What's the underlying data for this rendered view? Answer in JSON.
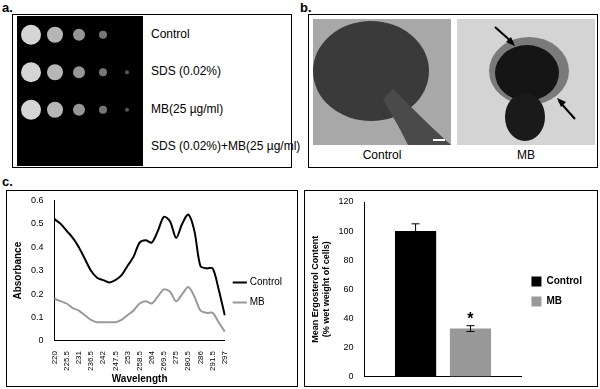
{
  "panel_a": {
    "label": "a.",
    "rows": [
      {
        "label": "Control",
        "spots": 4
      },
      {
        "label": "SDS (0.02%)",
        "spots": 5
      },
      {
        "label": "MB(25 µg/ml)",
        "spots": 5
      },
      {
        "label": "SDS (0.02%)+MB(25 µg/ml)",
        "spots": 0
      }
    ]
  },
  "panel_b": {
    "label": "b.",
    "images": [
      "Control",
      "MB"
    ]
  },
  "panel_c": {
    "label": "c."
  },
  "chart_data": [
    {
      "type": "line",
      "x_label": "Wavelength",
      "y_label": "Absorbance",
      "categories": [
        220,
        null,
        225.5,
        null,
        231,
        null,
        236.5,
        null,
        242,
        null,
        247.5,
        null,
        253,
        null,
        258.5,
        null,
        264,
        null,
        269.5,
        null,
        275,
        null,
        280.5,
        null,
        286,
        null,
        291.5,
        null,
        297
      ],
      "series": [
        {
          "name": "Control",
          "color": "#000000",
          "line_style": "solid",
          "marker": "none",
          "values": [
            0.52,
            0.5,
            0.47,
            0.44,
            0.4,
            0.35,
            0.3,
            0.27,
            0.26,
            0.25,
            0.26,
            0.28,
            0.32,
            0.36,
            0.42,
            0.43,
            0.42,
            0.47,
            0.53,
            0.51,
            0.44,
            0.5,
            0.54,
            0.47,
            0.32,
            0.31,
            0.31,
            0.22,
            0.11
          ]
        },
        {
          "name": "MB",
          "color": "#999999",
          "line_style": "solid",
          "marker": "none",
          "values": [
            0.18,
            0.17,
            0.16,
            0.14,
            0.13,
            0.11,
            0.09,
            0.08,
            0.08,
            0.08,
            0.08,
            0.09,
            0.11,
            0.13,
            0.16,
            0.17,
            0.16,
            0.19,
            0.22,
            0.21,
            0.17,
            0.2,
            0.23,
            0.19,
            0.13,
            0.12,
            0.12,
            0.08,
            0.04
          ]
        }
      ],
      "ylim": [
        0,
        0.6
      ],
      "yticks": [
        0,
        0.1,
        0.2,
        0.3,
        0.4,
        0.5,
        0.6
      ],
      "grid": false,
      "legend": "right"
    },
    {
      "type": "bar",
      "y_label": [
        "Mean Ergosterol Content",
        "(% wet weight of cells)"
      ],
      "categories": [
        null
      ],
      "series": [
        {
          "name": "Control",
          "color": "#000000",
          "values": [
            100
          ],
          "errors": [
            5
          ]
        },
        {
          "name": "MB",
          "color": "#999999",
          "values": [
            33
          ],
          "errors": [
            2
          ]
        }
      ],
      "annotations": [
        {
          "text": "*",
          "series": "MB"
        }
      ],
      "ylim": [
        0,
        120
      ],
      "yticks": [
        0,
        20,
        40,
        60,
        80,
        100,
        120
      ],
      "grid": false,
      "legend": "right",
      "tick_labels": "y"
    }
  ]
}
